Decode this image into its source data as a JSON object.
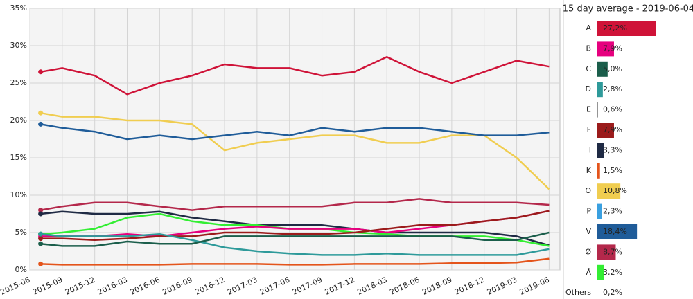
{
  "chart_data": [
    {
      "type": "line",
      "x": [
        "2015-07",
        "2015-09",
        "2015-12",
        "2016-03",
        "2016-06",
        "2016-09",
        "2016-12",
        "2017-03",
        "2017-06",
        "2017-09",
        "2017-12",
        "2018-03",
        "2018-06",
        "2018-09",
        "2018-12",
        "2019-03",
        "2019-06"
      ],
      "xlim": [
        "2015-06",
        "2019-07"
      ],
      "xticks": [
        "2015-06",
        "2015-09",
        "2015-12",
        "2016-03",
        "2016-06",
        "2016-09",
        "2016-12",
        "2017-03",
        "2017-06",
        "2017-09",
        "2017-12",
        "2018-03",
        "2018-06",
        "2018-09",
        "2018-12",
        "2019-03",
        "2019-06"
      ],
      "ylim": [
        0,
        35
      ],
      "yticks": [
        {
          "value": 0,
          "label": "0%"
        },
        {
          "value": 5,
          "label": "5%"
        },
        {
          "value": 10,
          "label": "10%"
        },
        {
          "value": 15,
          "label": "15%"
        },
        {
          "value": 20,
          "label": "20%"
        },
        {
          "value": 25,
          "label": "25%"
        },
        {
          "value": 30,
          "label": "30%"
        },
        {
          "value": 35,
          "label": "35%"
        }
      ],
      "grid": true,
      "series": [
        {
          "name": "A",
          "color": "#cf1338",
          "values": [
            26.5,
            27,
            26,
            23.5,
            25,
            26,
            27.5,
            27,
            27,
            26,
            26.5,
            28.5,
            26.5,
            25,
            26.5,
            28,
            27.2
          ]
        },
        {
          "name": "O",
          "color": "#f0cd50",
          "values": [
            21,
            20.5,
            20.5,
            20,
            20,
            19.5,
            16,
            17,
            17.5,
            18,
            18,
            17,
            17,
            18,
            18,
            15,
            10.8
          ]
        },
        {
          "name": "V",
          "color": "#1f5c99",
          "values": [
            19.5,
            19,
            18.5,
            17.5,
            18,
            17.5,
            18,
            18.5,
            18,
            19,
            18.5,
            19,
            19,
            18.5,
            18,
            18,
            18.4
          ]
        },
        {
          "name": "Ø",
          "color": "#b4284b",
          "values": [
            8,
            8.5,
            9,
            9,
            8.5,
            8,
            8.5,
            8.5,
            8.5,
            8.5,
            9,
            9,
            9.5,
            9,
            9,
            9,
            8.7
          ]
        },
        {
          "name": "I",
          "color": "#1f2a44",
          "values": [
            7.5,
            7.8,
            7.5,
            7.5,
            7.8,
            7,
            6.5,
            6,
            6,
            6,
            5.5,
            5,
            5,
            5,
            5,
            4.5,
            3.3
          ]
        },
        {
          "name": "Å",
          "color": "#33ee33",
          "values": [
            4.8,
            5,
            5.5,
            7,
            7.5,
            6.5,
            6,
            6,
            5.5,
            5.5,
            5,
            4.8,
            4.5,
            4.5,
            4.5,
            4,
            3.2
          ]
        },
        {
          "name": "B",
          "color": "#e6007e",
          "values": [
            4.5,
            4.5,
            4.5,
            4.8,
            4.5,
            5,
            5.5,
            5.8,
            5.5,
            5.5,
            5.5,
            5,
            5.5,
            6,
            6.5,
            7,
            7.9
          ]
        },
        {
          "name": "F",
          "color": "#9b1b1b",
          "values": [
            4.2,
            4.2,
            4,
            4.2,
            4.5,
            4.5,
            5,
            5,
            4.8,
            4.8,
            5,
            5.5,
            6,
            6,
            6.5,
            7,
            7.9
          ]
        },
        {
          "name": "D",
          "color": "#2e9a9a",
          "values": [
            4.8,
            4.5,
            4.5,
            4.5,
            4.8,
            4,
            3,
            2.5,
            2.2,
            2,
            2,
            2.2,
            2,
            2,
            2,
            2,
            2.8
          ]
        },
        {
          "name": "C",
          "color": "#1b5e4b",
          "values": [
            3.5,
            3.2,
            3.2,
            3.8,
            3.5,
            3.5,
            4.5,
            4.5,
            4.5,
            4.5,
            4.5,
            4.5,
            4.5,
            4.5,
            4,
            4,
            5.0
          ]
        },
        {
          "name": "K",
          "color": "#e4541b",
          "values": [
            0.8,
            0.7,
            0.7,
            0.7,
            0.7,
            0.8,
            0.8,
            0.8,
            0.7,
            0.7,
            0.8,
            0.8,
            0.8,
            0.9,
            0.9,
            1,
            1.5
          ]
        }
      ]
    },
    {
      "type": "barh",
      "title": "15 day average - 2019-06-04",
      "categories": [
        "A",
        "B",
        "C",
        "D",
        "E",
        "F",
        "I",
        "K",
        "O",
        "P",
        "V",
        "Ø",
        "Å",
        "Others"
      ],
      "values": [
        27.2,
        7.9,
        5.0,
        2.8,
        0.6,
        7.9,
        3.3,
        1.5,
        10.8,
        2.3,
        18.4,
        8.7,
        3.2,
        0.2
      ],
      "value_labels": [
        "27,2%",
        "7,9%",
        "5,0%",
        "2,8%",
        "0,6%",
        "7,9%",
        "3,3%",
        "1,5%",
        "10,8%",
        "2,3%",
        "18,4%",
        "8,7%",
        "3,2%",
        "0,2%"
      ],
      "colors": [
        "#cf1338",
        "#e6007e",
        "#1b5e4b",
        "#2e9a9a",
        "#888888",
        "#9b1b1b",
        "#1f2a44",
        "#e4541b",
        "#f0cd50",
        "#3aa0e0",
        "#1f5c99",
        "#b4284b",
        "#33ee33",
        "#ffffff"
      ]
    }
  ]
}
